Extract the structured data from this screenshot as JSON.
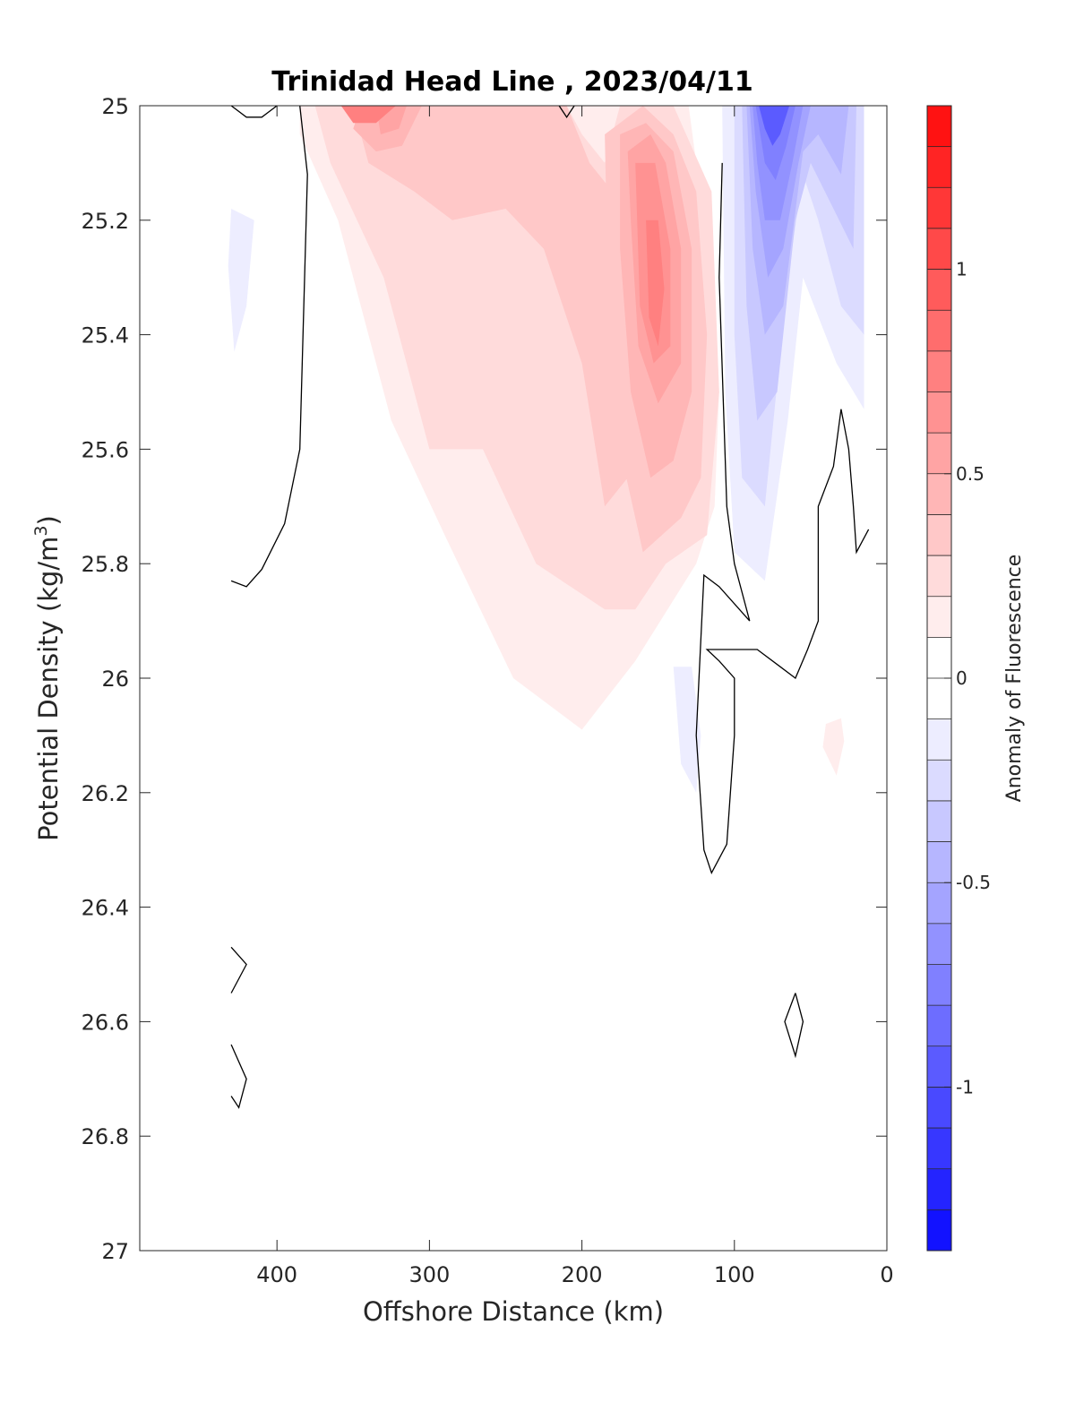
{
  "chart_data": {
    "type": "contourf",
    "title": "Trinidad Head Line , 2023/04/11",
    "xlabel": "Offshore Distance (km)",
    "ylabel_main": "Potential Density (kg/m",
    "ylabel_sup": "3",
    "ylabel_tail": ")",
    "x_axis": {
      "range": [
        490,
        0
      ],
      "reversed": true,
      "ticks": [
        400,
        300,
        200,
        100,
        0
      ],
      "tick_labels": [
        "400",
        "300",
        "200",
        "100",
        "0"
      ]
    },
    "y_axis": {
      "range": [
        25,
        27
      ],
      "reversed": true,
      "ticks": [
        25,
        25.2,
        25.4,
        25.6,
        25.8,
        26,
        26.2,
        26.4,
        26.6,
        26.8,
        27
      ],
      "tick_labels": [
        "25",
        "25.2",
        "25.4",
        "25.6",
        "25.8",
        "26",
        "26.2",
        "26.4",
        "26.6",
        "26.8",
        "27"
      ]
    },
    "colorbar": {
      "label": "Anomaly of Fluorescence",
      "range": [
        -1.4,
        1.4
      ],
      "step": 0.1,
      "ticks": [
        1,
        0.5,
        0,
        -0.5,
        -1
      ],
      "tick_labels": [
        "1",
        "0.5",
        "0",
        "-0.5",
        "-1"
      ],
      "colormap": "blue-white-red",
      "max_color": "#ff0000",
      "min_color": "#0000ff",
      "mid_color": "#ffffff"
    },
    "filled_regions": [
      {
        "level": 0.1,
        "points": [
          [
            385,
            25
          ],
          [
            240,
            25
          ],
          [
            195,
            25
          ],
          [
            150,
            25
          ],
          [
            130,
            25
          ],
          [
            125,
            25.1
          ],
          [
            115,
            25.2
          ],
          [
            110,
            25.5
          ],
          [
            113,
            25.7
          ],
          [
            125,
            25.8
          ],
          [
            165,
            25.97
          ],
          [
            200,
            26.09
          ],
          [
            245,
            26.0
          ],
          [
            290,
            25.75
          ],
          [
            325,
            25.55
          ],
          [
            360,
            25.2
          ],
          [
            385,
            25.05
          ]
        ]
      },
      {
        "level": 0.1,
        "points": [
          [
            40,
            26.08
          ],
          [
            30,
            26.07
          ],
          [
            28,
            26.11
          ],
          [
            33,
            26.17
          ],
          [
            42,
            26.12
          ]
        ]
      },
      {
        "level": 0.2,
        "points": [
          [
            375,
            25
          ],
          [
            210,
            25
          ],
          [
            200,
            25.05
          ],
          [
            185,
            25.1
          ],
          [
            175,
            25
          ],
          [
            140,
            25
          ],
          [
            115,
            25.15
          ],
          [
            110,
            25.5
          ],
          [
            118,
            25.75
          ],
          [
            145,
            25.8
          ],
          [
            165,
            25.88
          ],
          [
            185,
            25.88
          ],
          [
            230,
            25.8
          ],
          [
            265,
            25.6
          ],
          [
            300,
            25.6
          ],
          [
            330,
            25.3
          ],
          [
            365,
            25.1
          ]
        ]
      },
      {
        "level": 0.3,
        "points": [
          [
            350,
            25
          ],
          [
            210,
            25
          ],
          [
            195,
            25.1
          ],
          [
            180,
            25.15
          ],
          [
            165,
            25.3
          ],
          [
            160,
            25.5
          ],
          [
            170,
            25.65
          ],
          [
            185,
            25.7
          ],
          [
            200,
            25.45
          ],
          [
            225,
            25.25
          ],
          [
            250,
            25.18
          ],
          [
            285,
            25.2
          ],
          [
            310,
            25.15
          ],
          [
            340,
            25.1
          ]
        ]
      },
      {
        "level": 0.3,
        "points": [
          [
            185,
            25.05
          ],
          [
            160,
            25
          ],
          [
            140,
            25.05
          ],
          [
            125,
            25.15
          ],
          [
            118,
            25.4
          ],
          [
            122,
            25.65
          ],
          [
            135,
            25.72
          ],
          [
            160,
            25.78
          ],
          [
            175,
            25.6
          ],
          [
            183,
            25.3
          ]
        ]
      },
      {
        "level": 0.4,
        "points": [
          [
            345,
            25
          ],
          [
            305,
            25
          ],
          [
            318,
            25.07
          ],
          [
            335,
            25.08
          ],
          [
            350,
            25.04
          ]
        ]
      },
      {
        "level": 0.4,
        "points": [
          [
            175,
            25.05
          ],
          [
            158,
            25.03
          ],
          [
            140,
            25.08
          ],
          [
            128,
            25.25
          ],
          [
            128,
            25.5
          ],
          [
            140,
            25.62
          ],
          [
            155,
            25.65
          ],
          [
            168,
            25.5
          ],
          [
            175,
            25.25
          ]
        ]
      },
      {
        "level": 0.5,
        "points": [
          [
            335,
            25
          ],
          [
            315,
            25
          ],
          [
            320,
            25.04
          ],
          [
            332,
            25.05
          ]
        ]
      },
      {
        "level": 0.5,
        "points": [
          [
            170,
            25.08
          ],
          [
            155,
            25.05
          ],
          [
            145,
            25.1
          ],
          [
            135,
            25.25
          ],
          [
            135,
            25.45
          ],
          [
            150,
            25.52
          ],
          [
            163,
            25.42
          ],
          [
            168,
            25.2
          ]
        ]
      },
      {
        "level": 0.6,
        "points": [
          [
            165,
            25.1
          ],
          [
            152,
            25.1
          ],
          [
            142,
            25.25
          ],
          [
            142,
            25.42
          ],
          [
            153,
            25.45
          ],
          [
            162,
            25.35
          ]
        ]
      },
      {
        "level": 0.7,
        "points": [
          [
            358,
            25
          ],
          [
            322,
            25
          ],
          [
            335,
            25.03
          ],
          [
            350,
            25.03
          ]
        ]
      },
      {
        "level": 0.7,
        "points": [
          [
            158,
            25.2
          ],
          [
            150,
            25.2
          ],
          [
            146,
            25.32
          ],
          [
            150,
            25.42
          ],
          [
            156,
            25.37
          ]
        ]
      },
      {
        "level": -0.1,
        "points": [
          [
            108,
            25
          ],
          [
            15,
            25
          ],
          [
            15,
            25.53
          ],
          [
            33,
            25.45
          ],
          [
            55,
            25.3
          ],
          [
            65,
            25.55
          ],
          [
            80,
            25.83
          ],
          [
            100,
            25.78
          ],
          [
            106,
            25.5
          ]
        ]
      },
      {
        "level": -0.1,
        "points": [
          [
            430,
            25.18
          ],
          [
            415,
            25.2
          ],
          [
            420,
            25.35
          ],
          [
            428,
            25.43
          ],
          [
            432,
            25.28
          ]
        ]
      },
      {
        "level": -0.1,
        "points": [
          [
            140,
            25.98
          ],
          [
            128,
            25.98
          ],
          [
            122,
            26.1
          ],
          [
            125,
            26.2
          ],
          [
            135,
            26.15
          ]
        ]
      },
      {
        "level": -0.2,
        "points": [
          [
            100,
            25
          ],
          [
            15,
            25
          ],
          [
            15,
            25.4
          ],
          [
            30,
            25.35
          ],
          [
            45,
            25.2
          ],
          [
            55,
            25.12
          ],
          [
            65,
            25.3
          ],
          [
            80,
            25.7
          ],
          [
            95,
            25.65
          ],
          [
            100,
            25.4
          ]
        ]
      },
      {
        "level": -0.3,
        "points": [
          [
            95,
            25
          ],
          [
            20,
            25
          ],
          [
            22,
            25.25
          ],
          [
            35,
            25.18
          ],
          [
            50,
            25.1
          ],
          [
            60,
            25.2
          ],
          [
            72,
            25.5
          ],
          [
            85,
            25.55
          ],
          [
            92,
            25.35
          ]
        ]
      },
      {
        "level": -0.4,
        "points": [
          [
            92,
            25
          ],
          [
            25,
            25
          ],
          [
            30,
            25.12
          ],
          [
            45,
            25.05
          ],
          [
            55,
            25.08
          ],
          [
            68,
            25.35
          ],
          [
            80,
            25.4
          ],
          [
            88,
            25.25
          ]
        ]
      },
      {
        "level": -0.5,
        "points": [
          [
            90,
            25
          ],
          [
            50,
            25
          ],
          [
            58,
            25.1
          ],
          [
            68,
            25.25
          ],
          [
            78,
            25.3
          ],
          [
            86,
            25.15
          ]
        ]
      },
      {
        "level": -0.6,
        "points": [
          [
            88,
            25
          ],
          [
            55,
            25
          ],
          [
            62,
            25.1
          ],
          [
            70,
            25.2
          ],
          [
            80,
            25.2
          ],
          [
            85,
            25.1
          ]
        ]
      },
      {
        "level": -0.7,
        "points": [
          [
            86,
            25
          ],
          [
            60,
            25
          ],
          [
            66,
            25.07
          ],
          [
            73,
            25.13
          ],
          [
            80,
            25.1
          ]
        ]
      },
      {
        "level": -0.9,
        "points": [
          [
            84,
            25
          ],
          [
            64,
            25
          ],
          [
            70,
            25.05
          ],
          [
            75,
            25.07
          ],
          [
            80,
            25.04
          ]
        ]
      }
    ],
    "zero_contours": [
      [
        [
          430,
          25
        ],
        [
          420,
          25.02
        ],
        [
          410,
          25.02
        ],
        [
          400,
          25
        ]
      ],
      [
        [
          385,
          25
        ],
        [
          380,
          25.12
        ],
        [
          385,
          25.6
        ],
        [
          395,
          25.73
        ],
        [
          410,
          25.81
        ],
        [
          420,
          25.84
        ],
        [
          430,
          25.83
        ]
      ],
      [
        [
          215,
          25
        ],
        [
          210,
          25.02
        ],
        [
          205,
          25
        ]
      ],
      [
        [
          108,
          25.1
        ],
        [
          110,
          25.3
        ],
        [
          105,
          25.7
        ],
        [
          100,
          25.8
        ],
        [
          90,
          25.9
        ],
        [
          110,
          25.84
        ],
        [
          120,
          25.82
        ],
        [
          125,
          26.1
        ],
        [
          120,
          26.3
        ],
        [
          115,
          26.34
        ],
        [
          105,
          26.29
        ],
        [
          100,
          26.1
        ],
        [
          100,
          26
        ],
        [
          110,
          25.97
        ],
        [
          118,
          25.95
        ],
        [
          85,
          25.95
        ],
        [
          70,
          25.98
        ],
        [
          60,
          26.0
        ],
        [
          52,
          25.95
        ],
        [
          45,
          25.9
        ],
        [
          45,
          25.7
        ],
        [
          35,
          25.63
        ],
        [
          30,
          25.53
        ],
        [
          25,
          25.6
        ],
        [
          22,
          25.7
        ],
        [
          20,
          25.78
        ],
        [
          12,
          25.74
        ]
      ],
      [
        [
          430,
          26.47
        ],
        [
          420,
          26.5
        ],
        [
          430,
          26.55
        ]
      ],
      [
        [
          430,
          26.64
        ],
        [
          420,
          26.7
        ],
        [
          425,
          26.75
        ],
        [
          430,
          26.73
        ]
      ],
      [
        [
          60,
          26.55
        ],
        [
          55,
          26.6
        ],
        [
          60,
          26.66
        ],
        [
          67,
          26.6
        ],
        [
          60,
          26.55
        ]
      ]
    ]
  }
}
